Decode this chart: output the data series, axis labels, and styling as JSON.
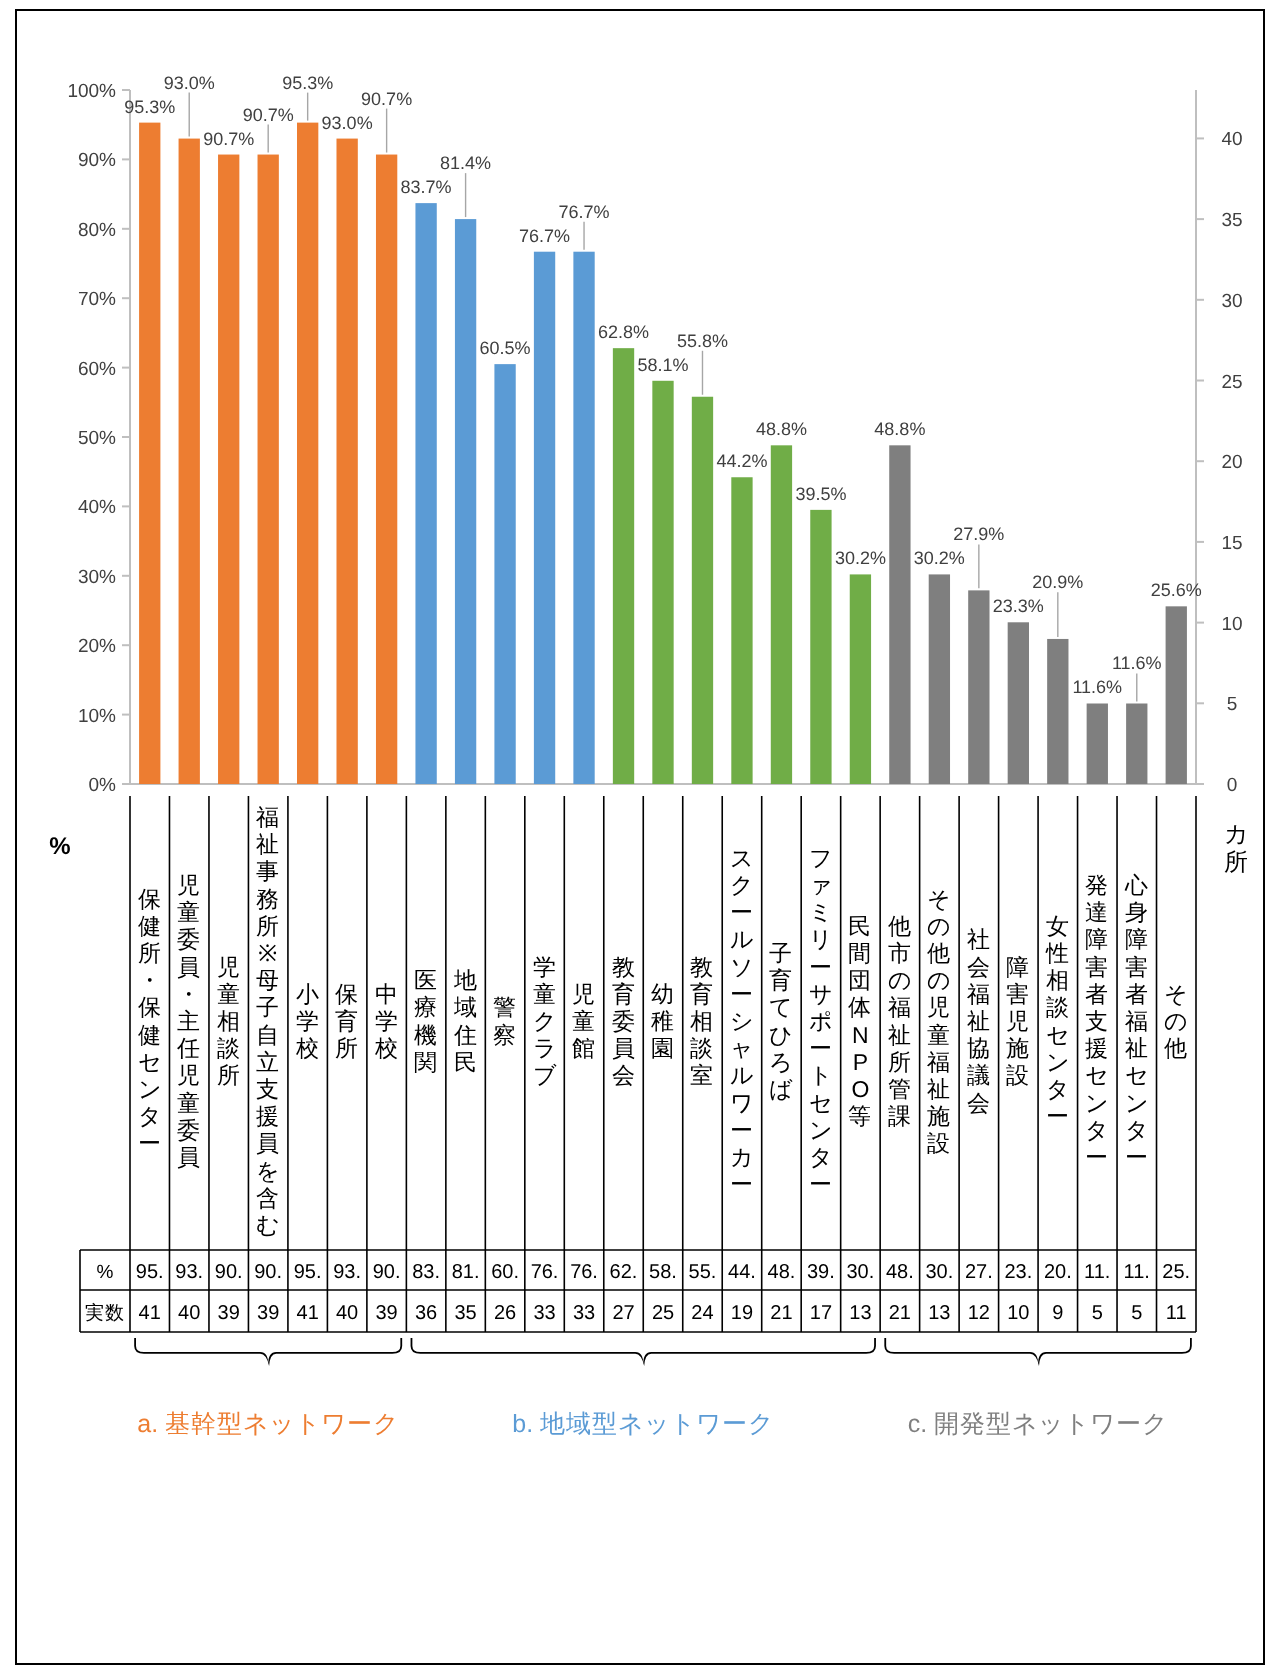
{
  "chart_data": {
    "type": "bar",
    "ylabel": "%",
    "y2label": "カ所",
    "categories": [
      "保健所・保健センター",
      "児童委員・主任児童委員",
      "児童相談所",
      "福祉事務所※母子自立支援員を含む",
      "小学校",
      "保育所",
      "中学校",
      "医療機関",
      "地域住民",
      "警察",
      "学童クラブ",
      "児童館",
      "教育委員会",
      "幼稚園",
      "教育相談室",
      "スクールソーシャルワーカー",
      "子育てひろば",
      "ファミリーサポートセンター",
      "民間団体NPO等",
      "他市の福祉所管課",
      "その他の児童福祉施設",
      "社会福祉協議会",
      "障害児施設",
      "女性相談センター",
      "発達障害者支援センター",
      "心身障害者福祉センター",
      "その他"
    ],
    "series": [
      {
        "name": "a. 基幹型ネットワーク",
        "color": "#ed7d31",
        "values": [
          95.3,
          93.0,
          90.7,
          90.7,
          95.3,
          93.0,
          90.7,
          null,
          null,
          null,
          null,
          null,
          null,
          null,
          null,
          null,
          null,
          null,
          null,
          null,
          null,
          null,
          null,
          null,
          null,
          null,
          null
        ],
        "value_labels": [
          "95.3%",
          "93.0%",
          "90.7%",
          "90.7%",
          "95.3%",
          "93.0%",
          "90.7%",
          null,
          null,
          null,
          null,
          null,
          null,
          null,
          null,
          null,
          null,
          null,
          null,
          null,
          null,
          null,
          null,
          null,
          null,
          null,
          null
        ]
      },
      {
        "name": "b. 地域型ネットワーク",
        "colors": [
          null,
          null,
          null,
          null,
          null,
          null,
          null,
          "#5b9bd5",
          "#5b9bd5",
          "#5b9bd5",
          "#5b9bd5",
          "#5b9bd5",
          "#70ad47",
          "#70ad47",
          "#70ad47",
          "#70ad47",
          "#70ad47",
          "#70ad47",
          "#70ad47",
          null,
          null,
          null,
          null,
          null,
          null,
          null,
          null
        ],
        "values": [
          null,
          null,
          null,
          null,
          null,
          null,
          null,
          83.7,
          81.4,
          60.5,
          76.7,
          76.7,
          62.8,
          58.1,
          55.8,
          44.2,
          48.8,
          39.5,
          30.2,
          null,
          null,
          null,
          null,
          null,
          null,
          null,
          null
        ],
        "value_labels": [
          null,
          null,
          null,
          null,
          null,
          null,
          null,
          "83.7%",
          "81.4%",
          "60.5%",
          "76.7%",
          "76.7%",
          "62.8%",
          "58.1%",
          "55.8%",
          "44.2%",
          "48.8%",
          "39.5%",
          "30.2%",
          null,
          null,
          null,
          null,
          null,
          null,
          null,
          null
        ]
      },
      {
        "name": "c. 開発型ネットワーク",
        "color": "#7f7f7f",
        "values": [
          null,
          null,
          null,
          null,
          null,
          null,
          null,
          null,
          null,
          null,
          null,
          null,
          null,
          null,
          null,
          null,
          null,
          null,
          null,
          48.8,
          30.2,
          27.9,
          23.3,
          20.9,
          11.6,
          11.6,
          25.6
        ],
        "value_labels": [
          null,
          null,
          null,
          null,
          null,
          null,
          null,
          null,
          null,
          null,
          null,
          null,
          null,
          null,
          null,
          null,
          null,
          null,
          null,
          "48.8%",
          "30.2%",
          "27.9%",
          "23.3%",
          "20.9%",
          "11.6%",
          "11.6%",
          "25.6%"
        ]
      }
    ],
    "ylim": [
      0,
      100
    ],
    "yticks": [
      {
        "value": 0,
        "label": "0%"
      },
      {
        "value": 10,
        "label": "10%"
      },
      {
        "value": 20,
        "label": "20%"
      },
      {
        "value": 30,
        "label": "30%"
      },
      {
        "value": 40,
        "label": "40%"
      },
      {
        "value": 50,
        "label": "50%"
      },
      {
        "value": 60,
        "label": "60%"
      },
      {
        "value": 70,
        "label": "70%"
      },
      {
        "value": 80,
        "label": "80%"
      },
      {
        "value": 90,
        "label": "90%"
      },
      {
        "value": 100,
        "label": "100%"
      }
    ],
    "y2lim": [
      0,
      43
    ],
    "y2ticks": [
      0,
      5,
      10,
      15,
      20,
      25,
      30,
      35,
      40
    ],
    "annotations": [
      "%",
      "95.",
      "93.",
      "90.",
      "90.",
      "95.",
      "93.",
      "90.",
      "83.",
      "81.",
      "60.",
      "76.",
      "76.",
      "62.",
      "58.",
      "55.",
      "44.",
      "48.",
      "39.",
      "30.",
      "48.",
      "30.",
      "27.",
      "23.",
      "20.",
      "11.",
      "11.",
      "25.",
      "実数",
      "41",
      "40",
      "39",
      "39",
      "41",
      "40",
      "39",
      "36",
      "35",
      "26",
      "33",
      "33",
      "27",
      "25",
      "24",
      "19",
      "21",
      "17",
      "13",
      "21",
      "13",
      "12",
      "10",
      "9",
      "5",
      "5",
      "11"
    ]
  }
}
